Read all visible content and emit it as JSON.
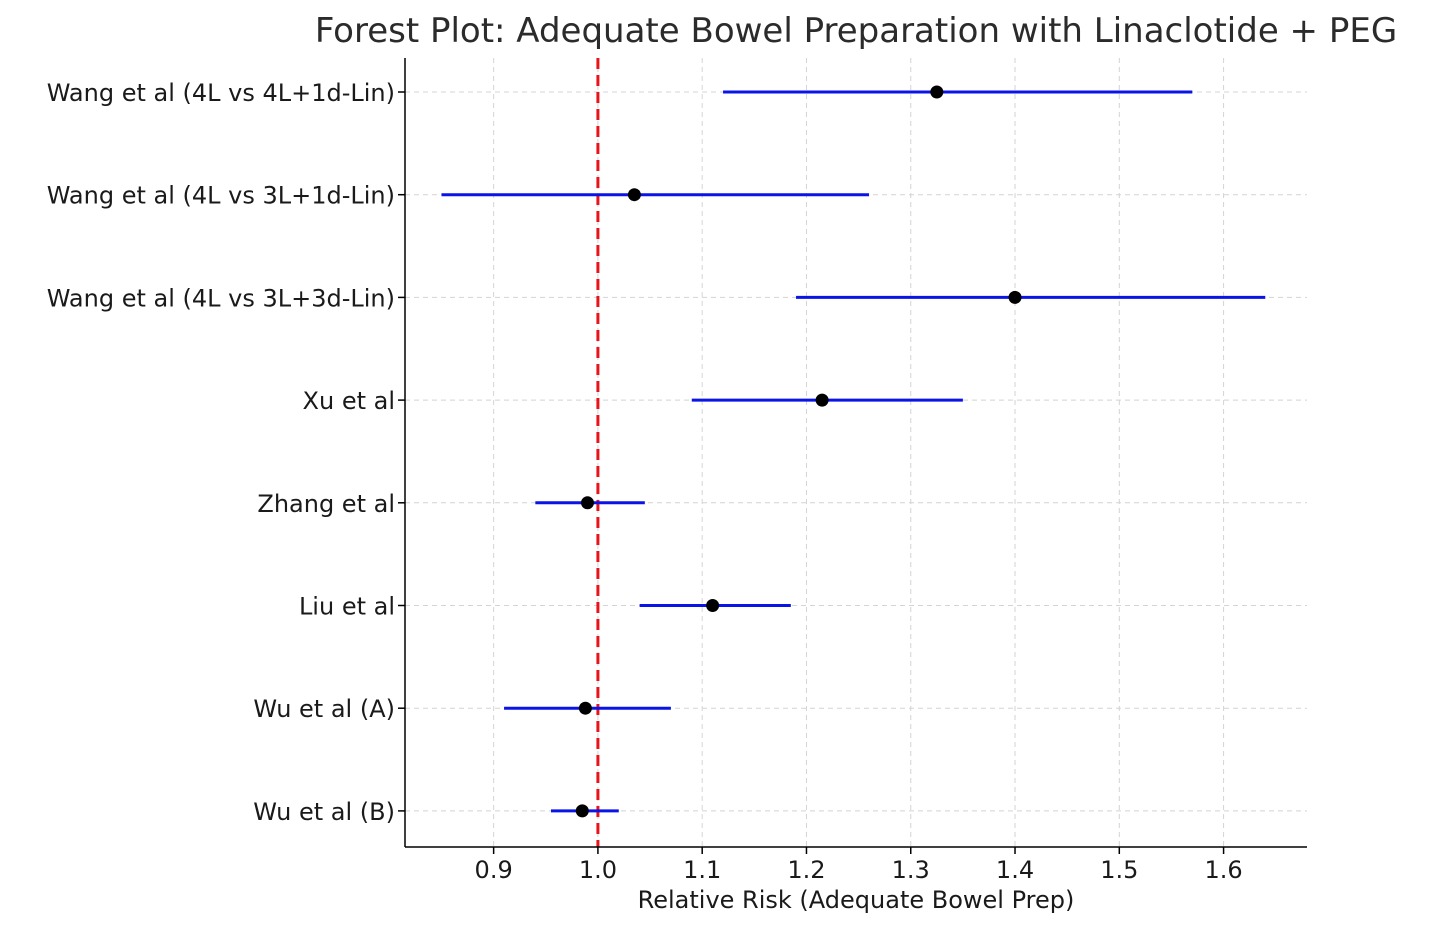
{
  "chart_data": {
    "type": "scatter",
    "subtype": "forest-plot",
    "title": "Forest Plot: Adequate Bowel Preparation with Linaclotide + PEG",
    "xlabel": "Relative Risk (Adequate Bowel Prep)",
    "ylabel": "",
    "xlim": [
      0.815,
      1.68
    ],
    "x_ticks": [
      0.9,
      1.0,
      1.1,
      1.2,
      1.3,
      1.4,
      1.5,
      1.6
    ],
    "x_tick_labels": [
      "0.9",
      "1.0",
      "1.1",
      "1.2",
      "1.3",
      "1.4",
      "1.5",
      "1.6"
    ],
    "reference_line": {
      "x": 1.0,
      "color": "#e8141b",
      "style": "dashed"
    },
    "grid": true,
    "legend": "none",
    "colors": {
      "ci": "#0a14e6",
      "point": "#000000",
      "grid": "#d4d4d4",
      "axis": "#000000"
    },
    "studies": [
      {
        "label": "Wang et al (4L vs 4L+1d-Lin)",
        "rr": 1.325,
        "lower": 1.12,
        "upper": 1.57
      },
      {
        "label": "Wang et al (4L vs 3L+1d-Lin)",
        "rr": 1.035,
        "lower": 0.85,
        "upper": 1.26
      },
      {
        "label": "Wang et al (4L vs 3L+3d-Lin)",
        "rr": 1.4,
        "lower": 1.19,
        "upper": 1.64
      },
      {
        "label": "Xu et al",
        "rr": 1.215,
        "lower": 1.09,
        "upper": 1.35
      },
      {
        "label": "Zhang et al",
        "rr": 0.99,
        "lower": 0.94,
        "upper": 1.045
      },
      {
        "label": "Liu et al",
        "rr": 1.11,
        "lower": 1.04,
        "upper": 1.185
      },
      {
        "label": "Wu et al (A)",
        "rr": 0.988,
        "lower": 0.91,
        "upper": 1.07
      },
      {
        "label": "Wu et al (B)",
        "rr": 0.985,
        "lower": 0.955,
        "upper": 1.02
      }
    ]
  }
}
